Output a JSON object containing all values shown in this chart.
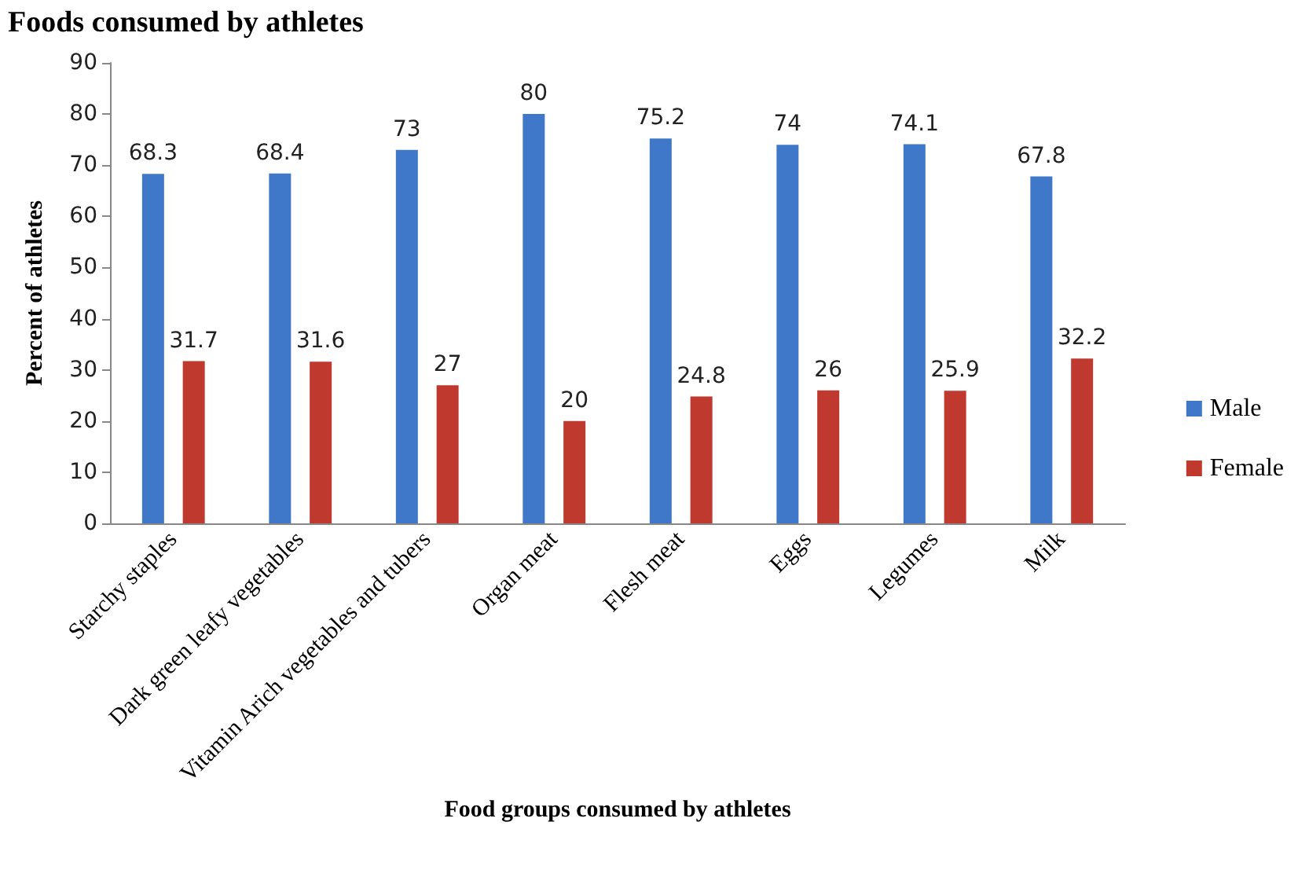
{
  "chart_data": {
    "type": "bar",
    "title": "Foods consumed by athletes",
    "xlabel": "Food groups consumed by athletes",
    "ylabel": "Percent of athletes",
    "categories": [
      "Starchy staples",
      "Dark green leafy vegetables",
      "Vitamin Arich vegetables and tubers",
      "Organ meat",
      "Flesh meat",
      "Eggs",
      "Legumes",
      "Milk"
    ],
    "series": [
      {
        "name": "Male",
        "color": "#3f78c8",
        "values": [
          68.3,
          68.4,
          73,
          80,
          75.2,
          74,
          74.1,
          67.8
        ]
      },
      {
        "name": "Female",
        "color": "#c0392f",
        "values": [
          31.7,
          31.6,
          27,
          20,
          24.8,
          26,
          25.9,
          32.2
        ]
      }
    ],
    "ylim": [
      0,
      90
    ],
    "yticks": [
      0,
      10,
      20,
      30,
      40,
      50,
      60,
      70,
      80,
      90
    ],
    "grid": false,
    "legend": "right",
    "data_labels": true
  }
}
